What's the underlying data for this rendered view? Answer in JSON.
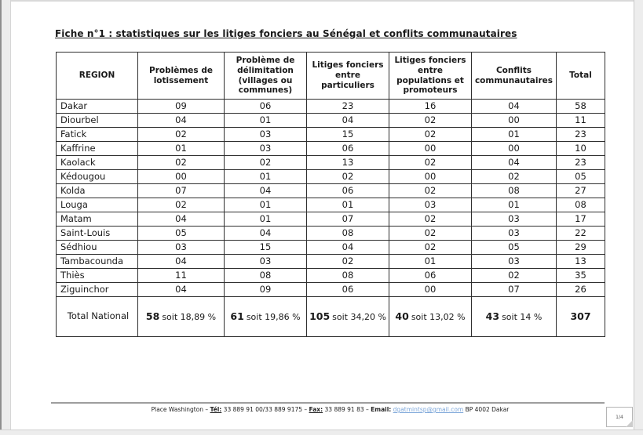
{
  "title": "Fiche n°1 : statistiques sur les litiges fonciers au Sénégal et  conflits communautaires",
  "table": {
    "headers": [
      "REGION",
      "Problèmes de lotissement",
      "Problème de délimitation (villages ou communes)",
      "Litiges fonciers entre particuliers",
      "Litiges fonciers entre populations et promoteurs",
      "Conflits communautaires",
      "Total"
    ],
    "rows": [
      {
        "region": "Dakar",
        "values": [
          "09",
          "06",
          "23",
          "16",
          "04",
          "58"
        ]
      },
      {
        "region": "Diourbel",
        "values": [
          "04",
          "01",
          "04",
          "02",
          "00",
          "11"
        ]
      },
      {
        "region": "Fatick",
        "values": [
          "02",
          "03",
          "15",
          "02",
          "01",
          "23"
        ]
      },
      {
        "region": "Kaffrine",
        "values": [
          "01",
          "03",
          "06",
          "00",
          "00",
          "10"
        ]
      },
      {
        "region": "Kaolack",
        "values": [
          "02",
          "02",
          "13",
          "02",
          "04",
          "23"
        ]
      },
      {
        "region": "Kédougou",
        "values": [
          "00",
          "01",
          "02",
          "00",
          "02",
          "05"
        ]
      },
      {
        "region": "Kolda",
        "values": [
          "07",
          "04",
          "06",
          "02",
          "08",
          "27"
        ]
      },
      {
        "region": "Louga",
        "values": [
          "02",
          "01",
          "01",
          "03",
          "01",
          "08"
        ]
      },
      {
        "region": "Matam",
        "values": [
          "04",
          "01",
          "07",
          "02",
          "03",
          "17"
        ]
      },
      {
        "region": "Saint-Louis",
        "values": [
          "05",
          "04",
          "08",
          "02",
          "03",
          "22"
        ]
      },
      {
        "region": "Sédhiou",
        "values": [
          "03",
          "15",
          "04",
          "02",
          "05",
          "29"
        ]
      },
      {
        "region": "Tambacounda",
        "values": [
          "04",
          "03",
          "02",
          "01",
          "03",
          "13"
        ]
      },
      {
        "region": "Thiès",
        "values": [
          "11",
          "08",
          "08",
          "06",
          "02",
          "35"
        ]
      },
      {
        "region": "Ziguinchor",
        "values": [
          "04",
          "09",
          "06",
          "00",
          "07",
          "26"
        ]
      }
    ],
    "total_row": {
      "label": "Total National",
      "cells": [
        {
          "value": "58",
          "suffix": "soit 18,89 %"
        },
        {
          "value": "61",
          "suffix": "soit 19,86 %"
        },
        {
          "value": "105",
          "suffix": "soit 34,20 %"
        },
        {
          "value": "40",
          "suffix": "soit 13,02 %"
        },
        {
          "value": "43",
          "suffix": "soit 14 %"
        },
        {
          "value": "307",
          "suffix": ""
        }
      ]
    }
  },
  "footer": {
    "segments": [
      {
        "text": "Place Washington – ",
        "style": "plain"
      },
      {
        "text": "Tél:",
        "style": "bold-underline"
      },
      {
        "text": " 33 889 91 00/33 889 9175 – ",
        "style": "plain"
      },
      {
        "text": "Fax:",
        "style": "bold-underline"
      },
      {
        "text": " 33 889 91 83 – ",
        "style": "plain"
      },
      {
        "text": "Email:",
        "style": "bold"
      },
      {
        "text": " ",
        "style": "plain"
      },
      {
        "text": "dgatmintsp@gmail.com",
        "style": "link"
      },
      {
        "text": " BP 4002 Dakar",
        "style": "plain"
      }
    ],
    "link_color": "#7da7d9",
    "page_badge": "1/4"
  }
}
